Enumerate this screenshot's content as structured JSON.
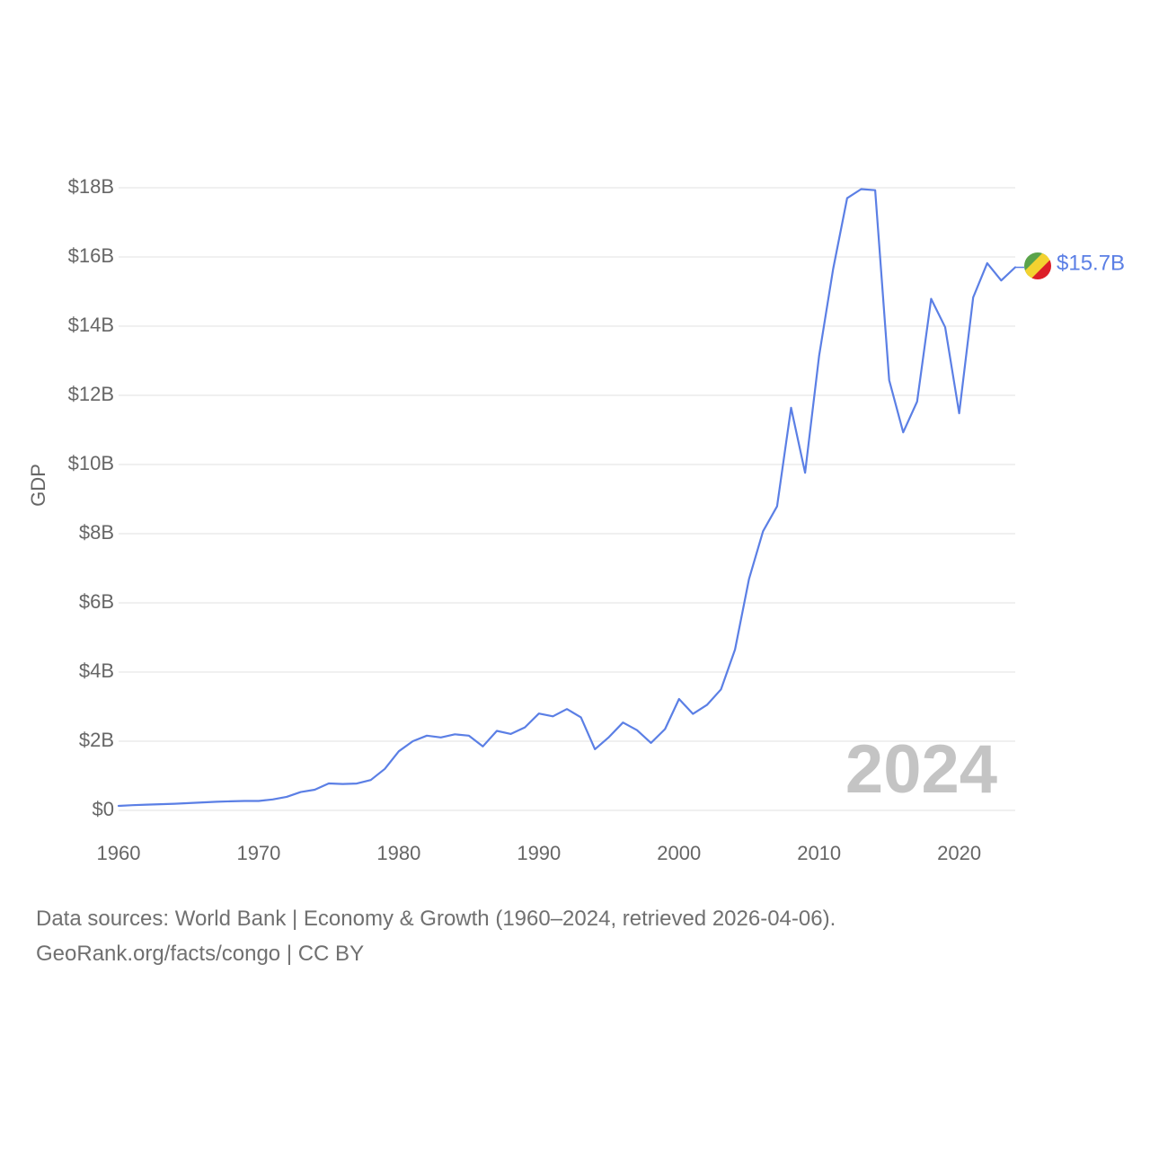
{
  "chart_data": {
    "type": "line",
    "title": "",
    "xlabel": "",
    "ylabel": "GDP",
    "xlim": [
      1960,
      2024
    ],
    "ylim": [
      0,
      18000000000
    ],
    "xticks": [
      1960,
      1970,
      1980,
      1990,
      2000,
      2010,
      2020
    ],
    "yticks": [
      {
        "value": 0,
        "label": "$0"
      },
      {
        "value": 2000000000,
        "label": "$2B"
      },
      {
        "value": 4000000000,
        "label": "$4B"
      },
      {
        "value": 6000000000,
        "label": "$6B"
      },
      {
        "value": 8000000000,
        "label": "$8B"
      },
      {
        "value": 10000000000,
        "label": "$10B"
      },
      {
        "value": 12000000000,
        "label": "$12B"
      },
      {
        "value": 14000000000,
        "label": "$14B"
      },
      {
        "value": 16000000000,
        "label": "$16B"
      },
      {
        "value": 18000000000,
        "label": "$18B"
      }
    ],
    "grid": true,
    "current_year": "2024",
    "series": [
      {
        "name": "Congo GDP",
        "color": "#5b7fe5",
        "end_label": "$15.7B",
        "flag_icon": "congo-flag-icon",
        "flag_colors": {
          "green": "#5aa34a",
          "yellow": "#f3d230",
          "red": "#dc1e28"
        },
        "x": [
          1960,
          1961,
          1962,
          1963,
          1964,
          1965,
          1966,
          1967,
          1968,
          1969,
          1970,
          1971,
          1972,
          1973,
          1974,
          1975,
          1976,
          1977,
          1978,
          1979,
          1980,
          1981,
          1982,
          1983,
          1984,
          1985,
          1986,
          1987,
          1988,
          1989,
          1990,
          1991,
          1992,
          1993,
          1994,
          1995,
          1996,
          1997,
          1998,
          1999,
          2000,
          2001,
          2002,
          2003,
          2004,
          2005,
          2006,
          2007,
          2008,
          2009,
          2010,
          2011,
          2012,
          2013,
          2014,
          2015,
          2016,
          2017,
          2018,
          2019,
          2020,
          2021,
          2022,
          2023,
          2024
        ],
        "values": [
          131000000,
          151000000,
          167000000,
          178000000,
          192000000,
          211000000,
          231000000,
          249000000,
          262000000,
          274000000,
          274000000,
          316000000,
          393000000,
          530000000,
          597000000,
          778000000,
          763000000,
          776000000,
          877000000,
          1200000000,
          1710000000,
          2000000000,
          2160000000,
          2110000000,
          2200000000,
          2160000000,
          1850000000,
          2300000000,
          2210000000,
          2400000000,
          2800000000,
          2720000000,
          2930000000,
          2690000000,
          1770000000,
          2120000000,
          2540000000,
          2320000000,
          1950000000,
          2350000000,
          3220000000,
          2790000000,
          3050000000,
          3500000000,
          4650000000,
          6690000000,
          8070000000,
          8790000000,
          11640000000,
          9760000000,
          13140000000,
          15650000000,
          17700000000,
          17960000000,
          17930000000,
          12440000000,
          10930000000,
          11820000000,
          14790000000,
          13970000000,
          11480000000,
          14830000000,
          15820000000,
          15320000000,
          15700000000
        ]
      }
    ]
  },
  "footer": {
    "line1": "Data sources: World Bank | Economy & Growth (1960–2024, retrieved 2026-04-06).",
    "line2": "GeoRank.org/facts/congo | CC BY"
  }
}
